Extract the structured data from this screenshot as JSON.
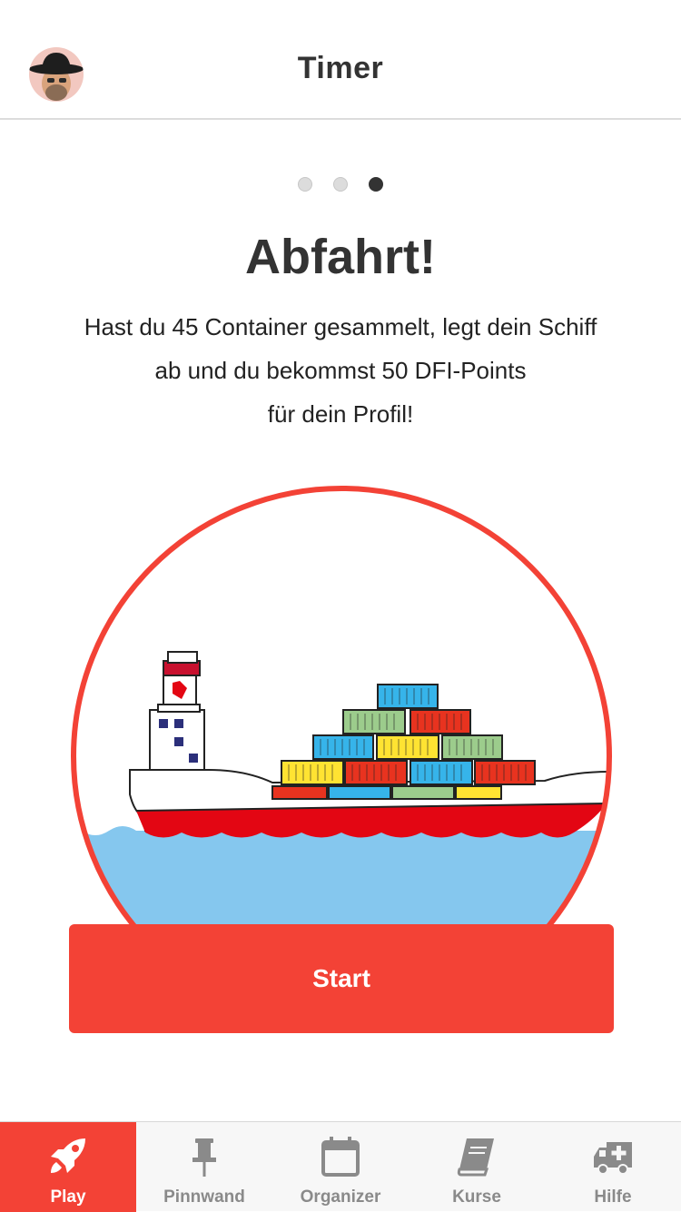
{
  "header": {
    "title": "Timer"
  },
  "pager": {
    "count": 3,
    "active_index": 2
  },
  "content": {
    "headline": "Abfahrt!",
    "description_lines": [
      "Hast du 45 Container gesammelt, legt dein Schiff",
      "ab und du bekommst 50 DFI-Points",
      "für dein Profil!"
    ]
  },
  "actions": {
    "start_label": "Start"
  },
  "tabbar": {
    "items": [
      {
        "label": "Play",
        "icon": "rocket-icon",
        "active": true
      },
      {
        "label": "Pinnwand",
        "icon": "pin-icon",
        "active": false
      },
      {
        "label": "Organizer",
        "icon": "calendar-icon",
        "active": false
      },
      {
        "label": "Kurse",
        "icon": "book-icon",
        "active": false
      },
      {
        "label": "Hilfe",
        "icon": "ambulance-icon",
        "active": false
      }
    ]
  },
  "colors": {
    "accent": "#f34236",
    "text": "#333333",
    "water": "#85c7ee",
    "hull": "#e30613"
  }
}
